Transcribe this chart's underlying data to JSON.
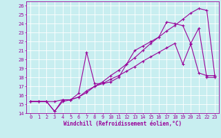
{
  "xlabel": "Windchill (Refroidissement éolien,°C)",
  "bg_color": "#c8eef0",
  "line_color": "#990099",
  "grid_color": "#ffffff",
  "xlim": [
    -0.5,
    23.5
  ],
  "ylim": [
    14,
    26.5
  ],
  "xticks": [
    0,
    1,
    2,
    3,
    4,
    5,
    6,
    7,
    8,
    9,
    10,
    11,
    12,
    13,
    14,
    15,
    16,
    17,
    18,
    19,
    20,
    21,
    22,
    23
  ],
  "yticks": [
    14,
    15,
    16,
    17,
    18,
    19,
    20,
    21,
    22,
    23,
    24,
    25,
    26
  ],
  "line1_x": [
    0,
    1,
    2,
    3,
    4,
    5,
    6,
    7,
    8,
    9,
    10,
    11,
    12,
    13,
    14,
    15,
    16,
    17,
    18,
    19,
    20,
    21,
    22,
    23
  ],
  "line1_y": [
    15.3,
    15.3,
    15.3,
    14.2,
    15.5,
    15.5,
    16.2,
    20.8,
    17.3,
    17.3,
    17.5,
    18.0,
    19.5,
    21.0,
    21.5,
    22.0,
    22.5,
    24.2,
    24.0,
    23.8,
    21.8,
    23.5,
    18.0,
    18.0
  ],
  "line2_x": [
    0,
    1,
    2,
    3,
    4,
    5,
    6,
    7,
    8,
    9,
    10,
    11,
    12,
    13,
    14,
    15,
    16,
    17,
    18,
    19,
    20,
    21,
    22,
    23
  ],
  "line2_y": [
    15.3,
    15.3,
    15.3,
    15.3,
    15.5,
    15.5,
    15.8,
    16.5,
    17.0,
    17.5,
    18.2,
    18.8,
    19.5,
    20.2,
    21.0,
    21.8,
    22.5,
    23.2,
    23.8,
    24.5,
    25.2,
    25.7,
    25.5,
    18.2
  ],
  "line3_x": [
    0,
    1,
    2,
    3,
    4,
    5,
    6,
    7,
    8,
    9,
    10,
    11,
    12,
    13,
    14,
    15,
    16,
    17,
    18,
    19,
    20,
    21,
    22,
    23
  ],
  "line3_y": [
    15.3,
    15.3,
    15.3,
    14.2,
    15.3,
    15.5,
    15.8,
    16.3,
    17.0,
    17.3,
    17.8,
    18.2,
    18.7,
    19.2,
    19.8,
    20.3,
    20.8,
    21.3,
    21.8,
    19.5,
    21.7,
    18.5,
    18.2,
    18.2
  ]
}
